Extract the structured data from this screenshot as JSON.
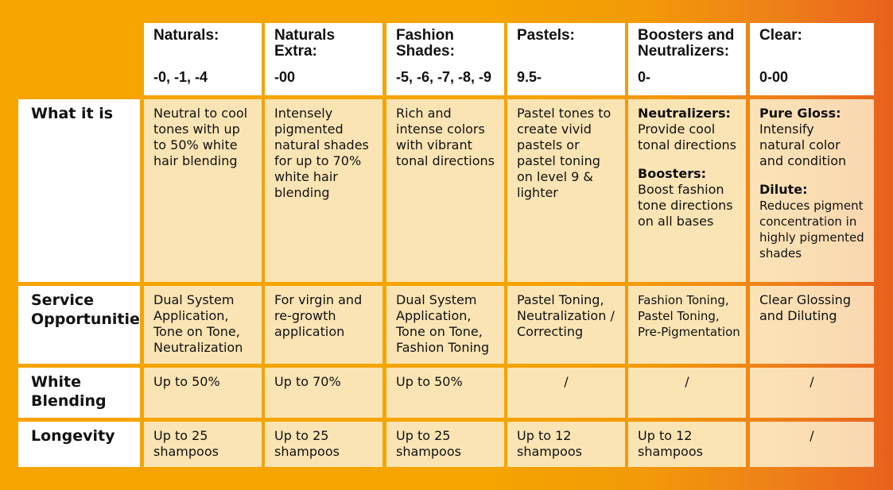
{
  "columns": [
    {
      "title": "Naturals:",
      "code": "-0, -1, -4"
    },
    {
      "title": "Naturals\nExtra:",
      "code": "-00"
    },
    {
      "title": "Fashion\nShades:",
      "code": "-5, -6, -7, -8, -9"
    },
    {
      "title": "Pastels:",
      "code": "9.5-"
    },
    {
      "title": "Boosters and\nNeutralizers:",
      "code": "0-"
    },
    {
      "title": "Clear:",
      "code": "0-00"
    }
  ],
  "rows": {
    "what_it_is": {
      "label": "What it is",
      "cells": [
        "Neutral to cool\ntones with up\n to 50% white\nhair blending",
        "Intensely\npigmented\nnatural shades\nfor up to 70%\nwhite hair\nblending",
        "Rich and\nintense colors\nwith vibrant\ntonal directions",
        "Pastel tones to\ncreate vivid\npastels or\npastel toning\non level 9 &\nlighter"
      ],
      "boosters": {
        "neutralizers_label": "Neutralizers:",
        "neutralizers_text": "Provide cool\ntonal directions",
        "boosters_label": "Boosters:",
        "boosters_text": "Boost fashion\ntone directions\non all bases"
      },
      "clear": {
        "gloss_label": "Pure Gloss:",
        "gloss_text": "Intensify\nnatural color\nand condition",
        "dilute_label": "Dilute:",
        "dilute_text": "Reduces pigment\nconcentration in\nhighly pigmented\nshades"
      }
    },
    "service": {
      "label": "Service\nOpportunities",
      "cells": [
        "Dual System\nApplication,\nTone on Tone,\nNeutralization",
        "For virgin and\nre-growth\napplication",
        "Dual System\nApplication,\nTone on Tone,\nFashion Toning",
        "Pastel Toning,\nNeutralization /\nCorrecting",
        "Fashion Toning,\nPastel Toning,\nPre-Pigmentation",
        "Clear Glossing\nand Diluting"
      ]
    },
    "white_blending": {
      "label": "White\nBlending",
      "cells": [
        "Up to 50%",
        "Up to 70%",
        "Up to 50%",
        "/",
        "/",
        "/"
      ]
    },
    "longevity": {
      "label": "Longevity",
      "cells": [
        "Up to 25\nshampoos",
        "Up to 25\nshampoos",
        "Up to 25\nshampoos",
        "Up to 12\nshampoos",
        "Up to 12\nshampoos",
        "/"
      ]
    }
  }
}
